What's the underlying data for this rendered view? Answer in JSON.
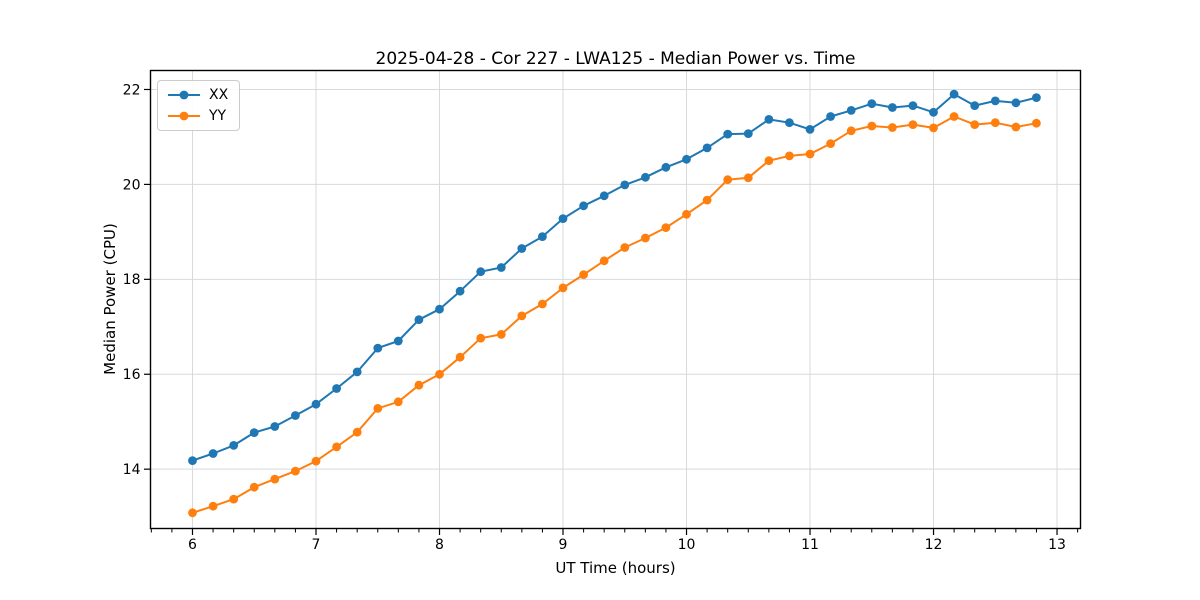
{
  "chart_data": {
    "type": "line",
    "title": "2025-04-28 - Cor 227 - LWA125 - Median Power vs. Time",
    "xlabel": "UT Time (hours)",
    "ylabel": "Median Power (CPU)",
    "xlim": [
      5.66,
      13.19
    ],
    "ylim": [
      12.75,
      22.4
    ],
    "x_ticks": [
      6,
      7,
      8,
      9,
      10,
      11,
      12,
      13
    ],
    "y_ticks": [
      14,
      16,
      18,
      20,
      22
    ],
    "x_minor_step": 0.166667,
    "grid": true,
    "legend_position": "upper-left",
    "marker": "circle",
    "x": [
      6.0,
      6.1667,
      6.3333,
      6.5,
      6.6667,
      6.8333,
      7.0,
      7.1667,
      7.3333,
      7.5,
      7.6667,
      7.8333,
      8.0,
      8.1667,
      8.3333,
      8.5,
      8.6667,
      8.8333,
      9.0,
      9.1667,
      9.3333,
      9.5,
      9.6667,
      9.8333,
      10.0,
      10.1667,
      10.3333,
      10.5,
      10.6667,
      10.8333,
      11.0,
      11.1667,
      11.3333,
      11.5,
      11.6667,
      11.8333,
      12.0,
      12.1667,
      12.3333,
      12.5,
      12.6667,
      12.8333
    ],
    "series": [
      {
        "name": "XX",
        "color": "#1f77b4",
        "values": [
          14.18,
          14.33,
          14.5,
          14.77,
          14.9,
          15.13,
          15.37,
          15.7,
          16.05,
          16.55,
          16.7,
          17.15,
          17.37,
          17.75,
          18.16,
          18.25,
          18.65,
          18.9,
          19.28,
          19.55,
          19.76,
          19.99,
          20.15,
          20.36,
          20.53,
          20.77,
          21.06,
          21.07,
          21.37,
          21.3,
          21.16,
          21.43,
          21.56,
          21.7,
          21.62,
          21.66,
          21.52,
          21.9,
          21.66,
          21.76,
          21.72,
          21.83
        ]
      },
      {
        "name": "YY",
        "color": "#ff7f0e",
        "values": [
          13.08,
          13.22,
          13.37,
          13.62,
          13.79,
          13.96,
          14.17,
          14.47,
          14.78,
          15.28,
          15.42,
          15.77,
          16.0,
          16.36,
          16.76,
          16.84,
          17.23,
          17.48,
          17.82,
          18.1,
          18.39,
          18.67,
          18.87,
          19.09,
          19.37,
          19.67,
          20.1,
          20.14,
          20.5,
          20.6,
          20.64,
          20.86,
          21.13,
          21.23,
          21.2,
          21.26,
          21.19,
          21.43,
          21.26,
          21.3,
          21.21,
          21.29
        ]
      }
    ]
  }
}
